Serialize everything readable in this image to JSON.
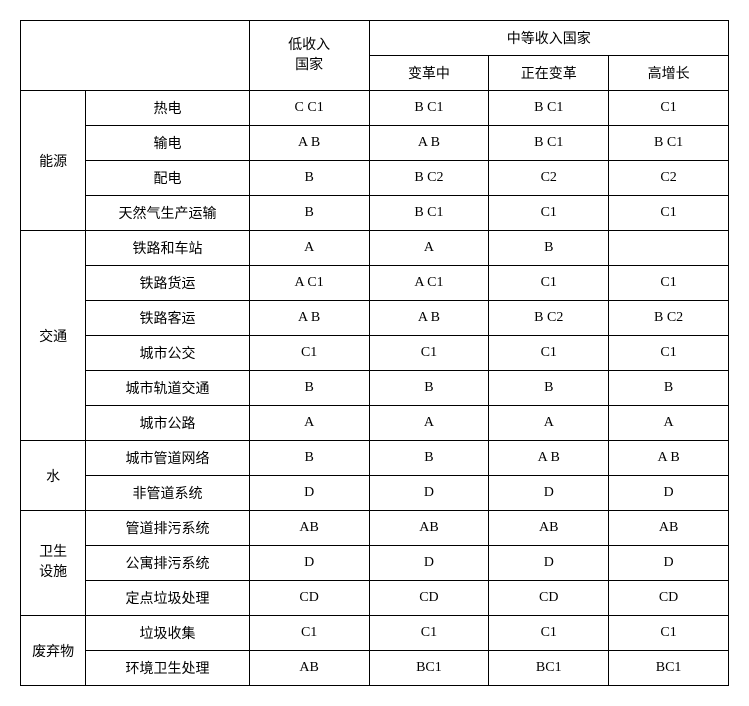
{
  "type": "table",
  "background_color": "#ffffff",
  "border_color": "#000000",
  "text_color": "#000000",
  "font_size": 14,
  "header": {
    "blank": "",
    "low_income_line1": "低收入",
    "low_income_line2": "国家",
    "middle_income": "中等收入国家",
    "sub": {
      "transforming": "变革中",
      "in_transform": "正在变革",
      "high_growth": "高增长"
    }
  },
  "categories": {
    "energy": "能源",
    "transport": "交通",
    "water": "水",
    "sanitation_line1": "卫生",
    "sanitation_line2": "设施",
    "waste": "废弃物"
  },
  "rows": {
    "r1": {
      "label": "热电",
      "c1": "C C1",
      "c2": "B C1",
      "c3": "B C1",
      "c4": "C1"
    },
    "r2": {
      "label": "输电",
      "c1": "A B",
      "c2": "A B",
      "c3": "B C1",
      "c4": "B C1"
    },
    "r3": {
      "label": "配电",
      "c1": "B",
      "c2": "B C2",
      "c3": "C2",
      "c4": "C2"
    },
    "r4": {
      "label": "天然气生产运输",
      "c1": "B",
      "c2": "B C1",
      "c3": "C1",
      "c4": "C1"
    },
    "r5": {
      "label": "铁路和车站",
      "c1": "A",
      "c2": "A",
      "c3": "B",
      "c4": ""
    },
    "r6": {
      "label": "铁路货运",
      "c1": "A C1",
      "c2": "A C1",
      "c3": "C1",
      "c4": "C1"
    },
    "r7": {
      "label": "铁路客运",
      "c1": "A B",
      "c2": "A B",
      "c3": "B C2",
      "c4": "B C2"
    },
    "r8": {
      "label": "城市公交",
      "c1": "C1",
      "c2": "C1",
      "c3": "C1",
      "c4": "C1"
    },
    "r9": {
      "label": "城市轨道交通",
      "c1": "B",
      "c2": "B",
      "c3": "B",
      "c4": "B"
    },
    "r10": {
      "label": "城市公路",
      "c1": "A",
      "c2": "A",
      "c3": "A",
      "c4": "A"
    },
    "r11": {
      "label": "城市管道网络",
      "c1": "B",
      "c2": "B",
      "c3": "A B",
      "c4": "A B"
    },
    "r12": {
      "label": "非管道系统",
      "c1": "D",
      "c2": "D",
      "c3": "D",
      "c4": "D"
    },
    "r13": {
      "label": "管道排污系统",
      "c1": "AB",
      "c2": "AB",
      "c3": "AB",
      "c4": "AB"
    },
    "r14": {
      "label": "公寓排污系统",
      "c1": "D",
      "c2": "D",
      "c3": "D",
      "c4": "D"
    },
    "r15": {
      "label": "定点垃圾处理",
      "c1": "CD",
      "c2": "CD",
      "c3": "CD",
      "c4": "CD"
    },
    "r16": {
      "label": "垃圾收集",
      "c1": "C1",
      "c2": "C1",
      "c3": "C1",
      "c4": "C1"
    },
    "r17": {
      "label": "环境卫生处理",
      "c1": "AB",
      "c2": "BC1",
      "c3": "BC1",
      "c4": "BC1"
    }
  }
}
